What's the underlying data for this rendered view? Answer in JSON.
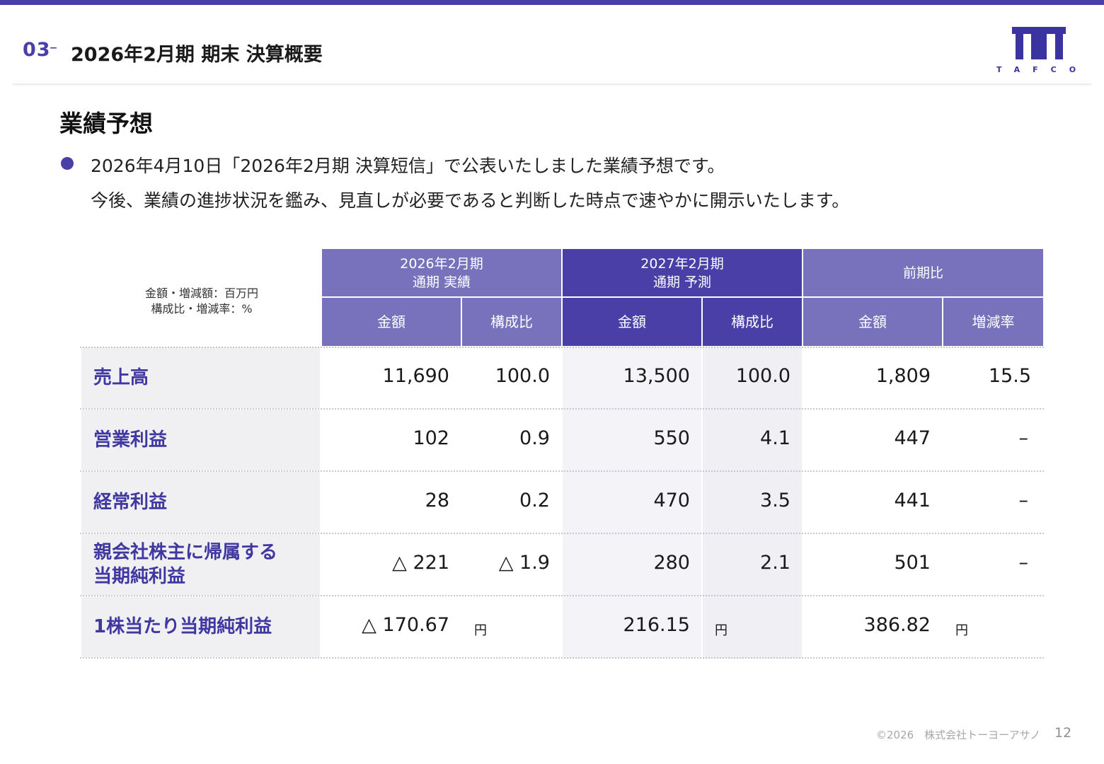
{
  "header": {
    "section_number": "03",
    "section_dash": "–",
    "section_title": "2026年2月期 期末 決算概要",
    "logo_text": "TAFCO"
  },
  "page": {
    "heading": "業績予想",
    "description_line1": "2026年4月10日「2026年2月期 決算短信」で公表いたしました業績予想です。",
    "description_line2": "今後、業績の進捗状況を鑑み、見直しが必要であると判断した時点で速やかに開示いたします。"
  },
  "table": {
    "unit_note_line1": "金額・増減額：百万円",
    "unit_note_line2": "構成比・増減率：%",
    "groups": {
      "actual_line1": "2026年2月期",
      "actual_line2": "通期 実績",
      "forecast_line1": "2027年2月期",
      "forecast_line2": "通期 予測",
      "compare": "前期比"
    },
    "subheaders": {
      "actual_amount": "金額",
      "actual_ratio": "構成比",
      "forecast_amount": "金額",
      "forecast_ratio": "構成比",
      "compare_amount": "金額",
      "compare_rate": "増減率"
    },
    "rows": [
      {
        "label": "売上高",
        "actual_amount": "11,690",
        "actual_ratio": "100.0",
        "forecast_amount": "13,500",
        "forecast_ratio": "100.0",
        "compare_amount": "1,809",
        "compare_rate": "15.5"
      },
      {
        "label": "営業利益",
        "actual_amount": "102",
        "actual_ratio": "0.9",
        "forecast_amount": "550",
        "forecast_ratio": "4.1",
        "compare_amount": "447",
        "compare_rate": "–"
      },
      {
        "label": "経常利益",
        "actual_amount": "28",
        "actual_ratio": "0.2",
        "forecast_amount": "470",
        "forecast_ratio": "3.5",
        "compare_amount": "441",
        "compare_rate": "–"
      },
      {
        "label_line1": "親会社株主に帰属する",
        "label_line2": "当期純利益",
        "actual_amount": "△ 221",
        "actual_ratio": "△ 1.9",
        "forecast_amount": "280",
        "forecast_ratio": "2.1",
        "compare_amount": "501",
        "compare_rate": "–"
      },
      {
        "label": "1株当たり当期純利益",
        "actual_amount": "△ 170.67",
        "actual_unit": "円",
        "forecast_amount": "216.15",
        "forecast_unit": "円",
        "compare_amount": "386.82",
        "compare_unit": "円"
      }
    ]
  },
  "footer": {
    "copyright": "©2026　株式会社トーヨーアサノ",
    "page_number": "12"
  },
  "colors": {
    "accent": "#4a3fa6",
    "header_light": "#7872bd",
    "label_text": "#4038a0"
  }
}
